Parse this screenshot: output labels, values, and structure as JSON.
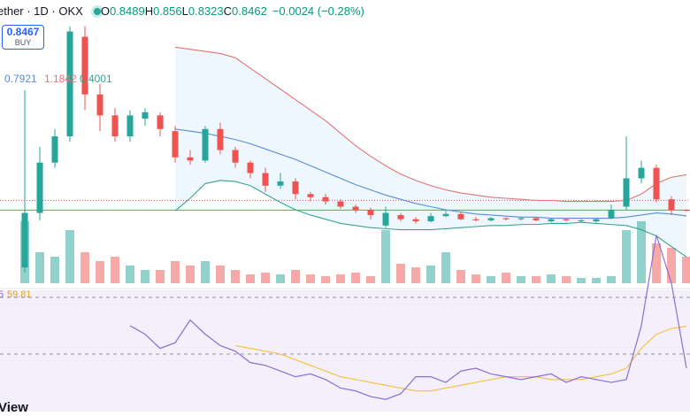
{
  "header": {
    "symbol": "ether · 1D · OKX",
    "ohlc_letters": [
      "O",
      "H",
      "L",
      "C"
    ],
    "change": "−0.0024 (−0.28%)"
  },
  "buy": {
    "label": "BUY"
  },
  "rsi_cut_label": "5",
  "footer": "View",
  "chart_data": {
    "type": "candlestick",
    "open": [
      0.3,
      0.82,
      1.3,
      1.55,
      2.5,
      1.95,
      1.75,
      1.55,
      1.72,
      1.75,
      1.6,
      1.35,
      1.32,
      1.62,
      1.42,
      1.3,
      1.2,
      1.08,
      1.12,
      1.0,
      0.97,
      0.93,
      0.88,
      0.85,
      0.7,
      0.8,
      0.76,
      0.74,
      0.79,
      0.81,
      0.76,
      0.75,
      0.77,
      0.76,
      0.77,
      0.74,
      0.76,
      0.74,
      0.74,
      0.77,
      0.88,
      1.15,
      1.25,
      0.95,
      0.8489
    ],
    "high": [
      1.99,
      1.45,
      1.62,
      2.6,
      2.6,
      2.05,
      1.82,
      1.8,
      1.82,
      1.78,
      1.65,
      1.42,
      1.65,
      1.68,
      1.45,
      1.32,
      1.25,
      1.2,
      1.15,
      1.02,
      1.0,
      0.95,
      0.9,
      0.87,
      0.88,
      0.82,
      0.78,
      0.82,
      0.85,
      0.83,
      0.78,
      0.78,
      0.78,
      0.78,
      0.78,
      0.77,
      0.77,
      0.76,
      0.77,
      0.9,
      1.55,
      1.32,
      1.28,
      0.98,
      0.856
    ],
    "low": [
      0.25,
      0.75,
      1.25,
      1.5,
      1.8,
      1.6,
      1.5,
      1.5,
      1.65,
      1.55,
      1.3,
      1.28,
      1.3,
      1.38,
      1.25,
      1.15,
      1.02,
      1.05,
      0.95,
      0.93,
      0.9,
      0.86,
      0.82,
      0.76,
      0.68,
      0.74,
      0.72,
      0.73,
      0.78,
      0.75,
      0.74,
      0.74,
      0.75,
      0.75,
      0.74,
      0.73,
      0.74,
      0.73,
      0.73,
      0.76,
      0.85,
      1.1,
      0.92,
      0.8,
      0.8323
    ],
    "close": [
      0.82,
      1.3,
      1.55,
      2.55,
      1.95,
      1.75,
      1.55,
      1.75,
      1.78,
      1.62,
      1.35,
      1.32,
      1.62,
      1.42,
      1.3,
      1.2,
      1.08,
      1.12,
      1.0,
      0.97,
      0.93,
      0.88,
      0.85,
      0.8,
      0.82,
      0.76,
      0.74,
      0.79,
      0.81,
      0.76,
      0.75,
      0.77,
      0.76,
      0.77,
      0.75,
      0.76,
      0.75,
      0.75,
      0.76,
      0.85,
      1.15,
      1.25,
      0.95,
      0.85,
      0.8462
    ],
    "ylim": [
      0.15,
      2.85
    ],
    "up_color": "#26a69a",
    "down_color": "#ef5350",
    "price_line": {
      "value": 0.8467,
      "color": "#4caf50"
    },
    "dotted_line": {
      "value": 0.94,
      "color": "#ef5350"
    },
    "bands": [
      {
        "color": "#5b8bd6",
        "values": [
          null,
          null,
          null,
          null,
          null,
          null,
          null,
          null,
          null,
          null,
          1.62,
          1.6,
          1.58,
          1.55,
          1.52,
          1.48,
          1.43,
          1.38,
          1.33,
          1.27,
          1.21,
          1.15,
          1.09,
          1.04,
          0.99,
          0.95,
          0.91,
          0.88,
          0.85,
          0.83,
          0.81,
          0.8,
          0.79,
          0.78,
          0.78,
          0.77,
          0.77,
          0.77,
          0.77,
          0.77,
          0.78,
          0.8,
          0.82,
          0.81,
          0.7921
        ]
      },
      {
        "color": "#e57373",
        "values": [
          null,
          null,
          null,
          null,
          null,
          null,
          null,
          null,
          null,
          null,
          2.4,
          2.38,
          2.36,
          2.34,
          2.3,
          2.2,
          2.1,
          2.0,
          1.9,
          1.8,
          1.7,
          1.58,
          1.46,
          1.36,
          1.27,
          1.19,
          1.13,
          1.08,
          1.04,
          1.01,
          0.99,
          0.97,
          0.96,
          0.95,
          0.94,
          0.94,
          0.93,
          0.93,
          0.93,
          0.93,
          0.94,
          1.0,
          1.1,
          1.16,
          1.1842
        ]
      },
      {
        "color": "#3aa38f",
        "values": [
          null,
          null,
          null,
          null,
          null,
          null,
          null,
          null,
          null,
          null,
          0.84,
          0.96,
          1.1,
          1.13,
          1.12,
          1.08,
          1.0,
          0.92,
          0.85,
          0.8,
          0.76,
          0.72,
          0.7,
          0.68,
          0.67,
          0.66,
          0.66,
          0.66,
          0.67,
          0.68,
          0.69,
          0.7,
          0.7,
          0.71,
          0.71,
          0.72,
          0.72,
          0.73,
          0.72,
          0.71,
          0.7,
          0.66,
          0.6,
          0.5,
          0.4001
        ]
      }
    ],
    "band_fill": "#2196f3",
    "volume": {
      "values": [
        70,
        35,
        30,
        60,
        35,
        25,
        30,
        20,
        15,
        15,
        25,
        20,
        25,
        20,
        15,
        10,
        12,
        10,
        15,
        10,
        8,
        10,
        12,
        8,
        60,
        22,
        18,
        20,
        35,
        15,
        10,
        8,
        12,
        8,
        8,
        10,
        8,
        6,
        6,
        8,
        60,
        70,
        45,
        40,
        30
      ],
      "ylim": [
        0,
        100
      ]
    },
    "rsi": {
      "color": "#8c6fd1",
      "values": [
        null,
        null,
        null,
        null,
        null,
        null,
        null,
        60,
        57,
        52,
        54,
        62,
        57,
        53,
        51,
        47,
        46,
        44,
        42,
        43,
        41,
        38,
        37,
        35,
        34,
        36,
        42,
        42,
        40,
        44,
        45,
        43,
        42,
        41,
        42,
        43,
        40,
        42,
        41,
        40,
        41,
        60,
        92,
        75,
        45
      ],
      "ma": {
        "color": "#f3c24a",
        "values": [
          null,
          null,
          null,
          null,
          null,
          null,
          null,
          null,
          null,
          null,
          null,
          null,
          null,
          null,
          53,
          52,
          51,
          50,
          48,
          46,
          44,
          42,
          41,
          40,
          39,
          38,
          37,
          37,
          38,
          39,
          40,
          41,
          42,
          42,
          42,
          41,
          41,
          41,
          42,
          43,
          45,
          52,
          57,
          59,
          59.81
        ]
      },
      "levels": [
        70,
        50
      ],
      "ylim": [
        29.7,
        72.5
      ]
    }
  }
}
